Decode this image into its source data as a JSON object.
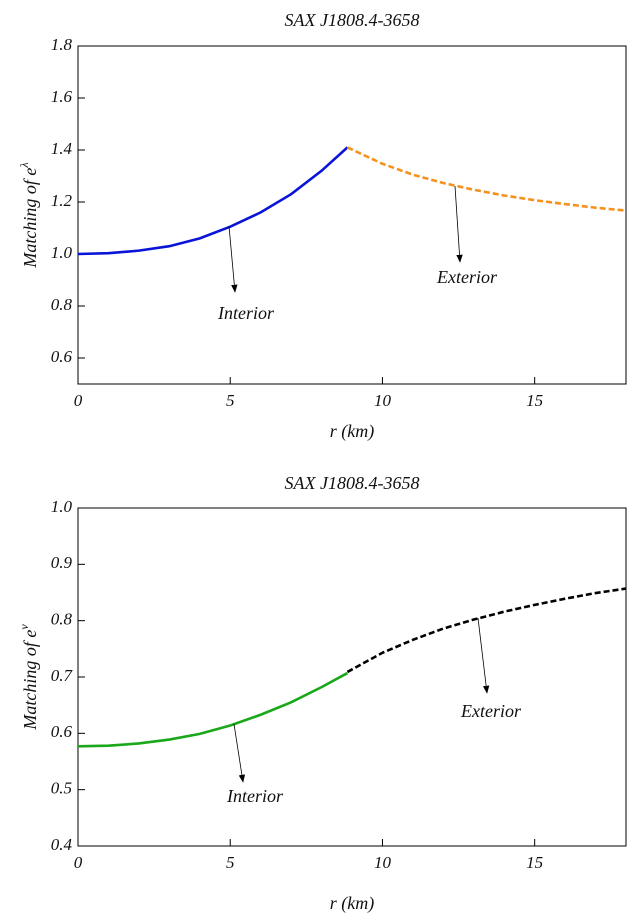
{
  "chart_data": [
    {
      "type": "line",
      "title": "SAX J1808.4-3658",
      "xlabel": "r (km)",
      "ylabel": "Matching of e",
      "ylabel_superscript": "λ",
      "xlim": [
        0,
        18
      ],
      "xticks": [
        0,
        5,
        10,
        15
      ],
      "ylim": [
        0.5,
        1.8
      ],
      "yticks": [
        0.6,
        0.8,
        {
          "value": 1,
          "label": "1.0"
        },
        1.2,
        1.4,
        1.6,
        1.8
      ],
      "series": [
        {
          "name": "Interior",
          "color": "#0a14d8",
          "dash": false,
          "x": [
            0,
            1,
            2,
            3,
            4,
            5,
            6,
            7,
            8,
            8.85
          ],
          "values": [
            1.0,
            1.003,
            1.013,
            1.03,
            1.06,
            1.105,
            1.16,
            1.23,
            1.32,
            1.41
          ]
        },
        {
          "name": "Exterior",
          "color": "#f5921e",
          "dash": true,
          "x": [
            8.85,
            10,
            11,
            12,
            13,
            14,
            15,
            16,
            17,
            18
          ],
          "values": [
            1.41,
            1.347,
            1.305,
            1.273,
            1.247,
            1.225,
            1.207,
            1.192,
            1.178,
            1.167
          ]
        }
      ]
    },
    {
      "type": "line",
      "title": "SAX J1808.4-3658",
      "xlabel": "r (km)",
      "ylabel": "Matching of e",
      "ylabel_superscript": "ν",
      "xlim": [
        0,
        18
      ],
      "xticks": [
        0,
        5,
        10,
        15
      ],
      "ylim": [
        0.4,
        1.0
      ],
      "yticks": [
        0.4,
        0.5,
        0.6,
        0.7,
        0.8,
        0.9,
        {
          "value": 1,
          "label": "1.0"
        }
      ],
      "series": [
        {
          "name": "Interior",
          "color": "#1aa81a",
          "dash": false,
          "x": [
            0,
            1,
            2,
            3,
            4,
            5,
            6,
            7,
            8,
            8.85
          ],
          "values": [
            0.577,
            0.578,
            0.582,
            0.589,
            0.599,
            0.614,
            0.633,
            0.655,
            0.682,
            0.707
          ]
        },
        {
          "name": "Exterior",
          "color": "#000000",
          "dash": true,
          "x": [
            8.85,
            10,
            11,
            12,
            13,
            14,
            15,
            16,
            17,
            18
          ],
          "values": [
            0.709,
            0.743,
            0.766,
            0.786,
            0.802,
            0.816,
            0.828,
            0.839,
            0.849,
            0.857
          ]
        }
      ]
    }
  ]
}
